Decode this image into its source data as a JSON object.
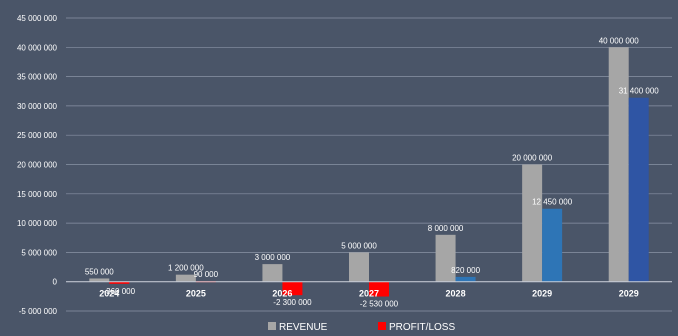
{
  "chart_data": {
    "type": "bar",
    "title": "",
    "xlabel": "",
    "ylabel": "",
    "ylim": [
      -5000000,
      45000000
    ],
    "yticks": [
      -5000000,
      0,
      5000000,
      10000000,
      15000000,
      20000000,
      25000000,
      30000000,
      35000000,
      40000000,
      45000000
    ],
    "ytick_labels": [
      "-5 000 000",
      "0",
      "5 000 000",
      "10 000 000",
      "15 000 000",
      "20 000 000",
      "25 000 000",
      "30 000 000",
      "35 000 000",
      "40 000 000",
      "45 000 000"
    ],
    "grid": true,
    "legend_position": "bottom",
    "categories": [
      "2024",
      "2025",
      "2026",
      "2027",
      "2028",
      "2029",
      "2029"
    ],
    "series": [
      {
        "name": "REVENUE",
        "color": "#a6a6a6",
        "values": [
          550000,
          1200000,
          3000000,
          5000000,
          8000000,
          20000000,
          40000000
        ],
        "labels": [
          "550 000",
          "1 200 000",
          "3 000 000",
          "5 000 000",
          "8 000 000",
          "20 000 000",
          "40 000 000"
        ]
      },
      {
        "name": "PROFIT/LOSS",
        "color": "#ff0000",
        "values": [
          -360000,
          90000,
          -2300000,
          -2530000,
          820000,
          12450000,
          31400000
        ],
        "labels": [
          "-360 000",
          "90 000",
          "-2 300 000",
          "-2 530 000",
          "820 000",
          "12 450 000",
          "31 400 000"
        ],
        "point_colors": [
          "#ff0000",
          "#ff0000",
          "#ff0000",
          "#ff0000",
          "#2e75b6",
          "#2e75b6",
          "#2f55a4"
        ]
      }
    ]
  }
}
